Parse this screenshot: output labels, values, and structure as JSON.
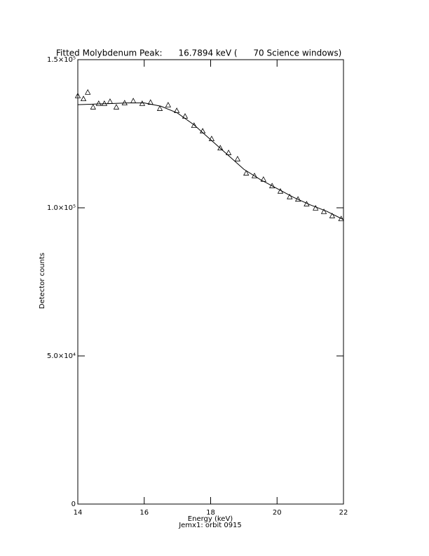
{
  "chart_data": {
    "type": "scatter",
    "title": "Fitted Molybdenum Peak:      16.7894 keV (      70 Science windows)",
    "x_label": "Energy (keV)",
    "subtitle": "Jemx1: orbit 0915",
    "y_label": "Detector counts",
    "xlim": [
      14,
      22
    ],
    "xticks": [
      14,
      16,
      18,
      20,
      22
    ],
    "ylim": [
      0,
      150000
    ],
    "yticks": [
      0,
      {
        "value": 50000,
        "label": "5.0×10⁴"
      },
      {
        "value": 100000,
        "label": "1.0×10⁵"
      },
      {
        "value": 150000,
        "label": "1.5×10⁵"
      }
    ],
    "color": "#000000",
    "points": {
      "x": [
        14.0,
        14.17,
        14.3,
        14.46,
        14.63,
        14.8,
        14.97,
        15.16,
        15.41,
        15.67,
        15.94,
        16.19,
        16.47,
        16.72,
        16.98,
        17.23,
        17.5,
        17.76,
        18.03,
        18.29,
        18.54,
        18.81,
        19.07,
        19.32,
        19.59,
        19.85,
        20.1,
        20.38,
        20.63,
        20.89,
        21.16,
        21.41,
        21.66,
        21.93
      ],
      "y": [
        137700,
        136700,
        138900,
        133900,
        135100,
        135100,
        135800,
        133900,
        135300,
        136000,
        135100,
        135500,
        133400,
        134600,
        132700,
        130800,
        127700,
        125800,
        123200,
        120100,
        118500,
        116400,
        111600,
        110700,
        109500,
        107300,
        105500,
        103600,
        102800,
        101200,
        99800,
        98600,
        97200,
        96200
      ]
    },
    "fit": {
      "x": [
        14,
        14.5,
        15,
        15.5,
        16,
        16.5,
        17,
        17.5,
        18,
        18.5,
        19,
        19.5,
        20,
        20.5,
        21,
        21.5,
        22
      ],
      "y": [
        134800,
        135000,
        135200,
        135400,
        135400,
        134300,
        132000,
        128000,
        123000,
        118000,
        113000,
        109500,
        106500,
        103500,
        101000,
        98800,
        96000
      ]
    }
  }
}
